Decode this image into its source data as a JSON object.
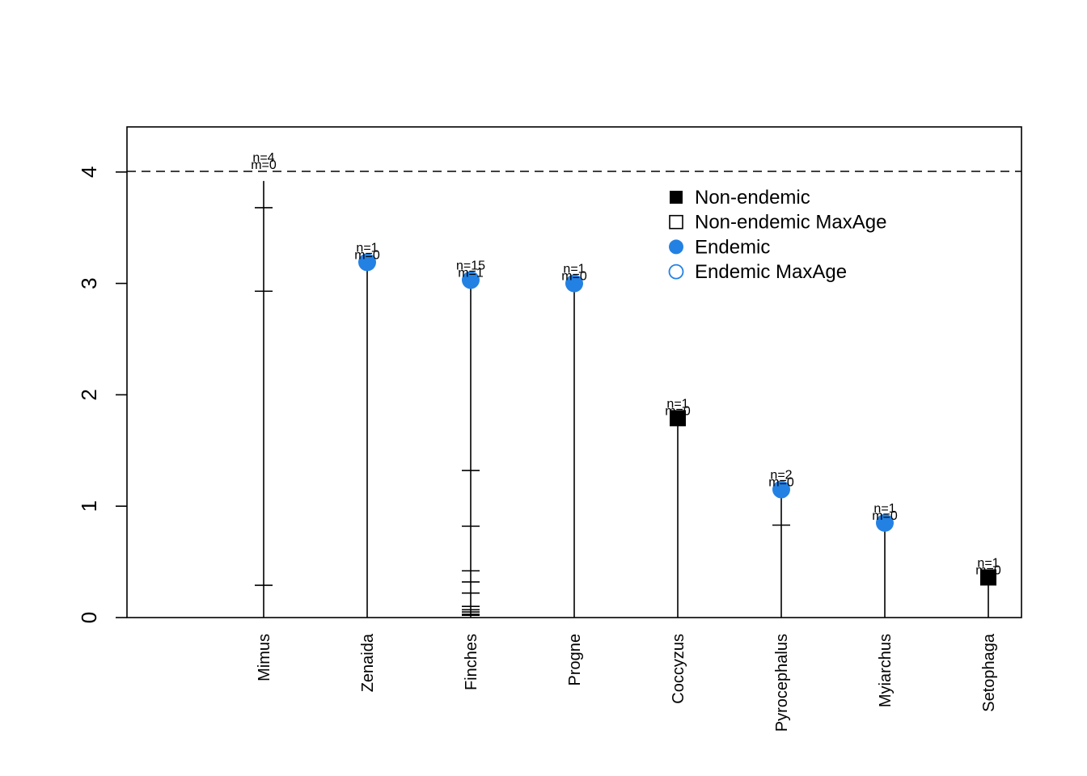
{
  "chart_data": {
    "type": "scatter",
    "title": "",
    "xlabel": "",
    "ylabel": "",
    "ylim": [
      0,
      4.4
    ],
    "y_ticks": [
      "0",
      "1",
      "2",
      "3",
      "4"
    ],
    "reference_line": {
      "y": 4,
      "style": "dashed"
    },
    "grid": false,
    "legend": {
      "placement": "top-right",
      "entries": [
        {
          "label": "Non-endemic",
          "marker": "filled-square",
          "color": "#000000"
        },
        {
          "label": "Non-endemic MaxAge",
          "marker": "open-square",
          "color": "#000000"
        },
        {
          "label": "Endemic",
          "marker": "filled-circle",
          "color": "#2381e3"
        },
        {
          "label": "Endemic MaxAge",
          "marker": "open-circle",
          "color": "#2381e3"
        }
      ]
    },
    "categories": [
      {
        "name": "Mimus",
        "value": 4.0,
        "status": "none",
        "n_label": "n=4",
        "m_label": "m=0",
        "line_top": 3.92,
        "ticks": [
          3.68,
          2.93,
          0.29
        ]
      },
      {
        "name": "Zenaida",
        "value": 3.19,
        "status": "endemic",
        "n_label": "n=1",
        "m_label": "m=0",
        "line_top": 3.19,
        "ticks": []
      },
      {
        "name": "Finches",
        "value": 3.03,
        "status": "endemic",
        "n_label": "n=15",
        "m_label": "m=1",
        "line_top": 3.03,
        "ticks": [
          1.32,
          0.82,
          0.42,
          0.32,
          0.22,
          0.1,
          0.07,
          0.05,
          0.03,
          0.02
        ]
      },
      {
        "name": "Progne",
        "value": 3.0,
        "status": "endemic",
        "n_label": "n=1",
        "m_label": "m=0",
        "line_top": 3.0,
        "ticks": []
      },
      {
        "name": "Coccyzus",
        "value": 1.79,
        "status": "non-endemic",
        "n_label": "n=1",
        "m_label": "m=0",
        "line_top": 1.79,
        "ticks": []
      },
      {
        "name": "Pyrocephalus",
        "value": 1.15,
        "status": "endemic",
        "n_label": "n=2",
        "m_label": "m=0",
        "line_top": 1.15,
        "ticks": [
          0.83
        ]
      },
      {
        "name": "Myiarchus",
        "value": 0.85,
        "status": "endemic",
        "n_label": "n=1",
        "m_label": "m=0",
        "line_top": 0.85,
        "ticks": []
      },
      {
        "name": "Setophaga",
        "value": 0.36,
        "status": "non-endemic",
        "n_label": "n=1",
        "m_label": "m=0",
        "line_top": 0.36,
        "ticks": []
      }
    ],
    "colors": {
      "endemic": "#2381e3",
      "non_endemic": "#000000",
      "axis": "#000000"
    }
  }
}
